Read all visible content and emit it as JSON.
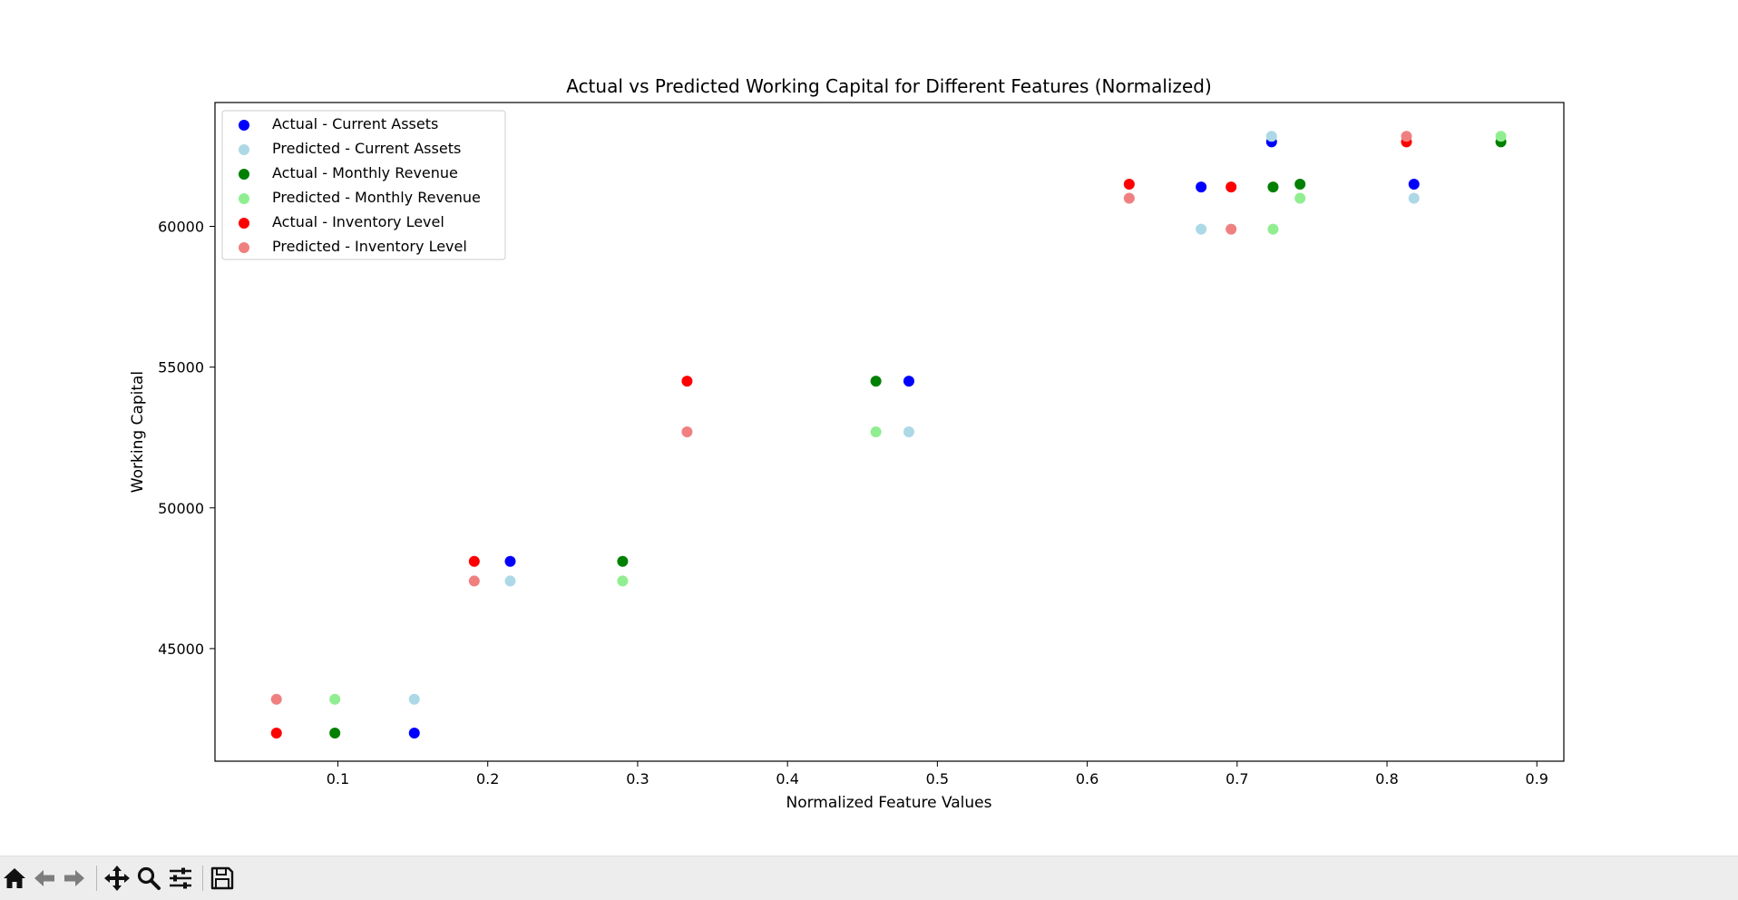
{
  "chart_data": {
    "type": "scatter",
    "title": "Actual vs Predicted Working Capital for Different Features (Normalized)",
    "xlabel": "Normalized Feature Values",
    "ylabel": "Working Capital",
    "xlim": [
      0.018,
      0.918
    ],
    "ylim": [
      41000,
      64400
    ],
    "xticks": [
      0.1,
      0.2,
      0.3,
      0.4,
      0.5,
      0.6,
      0.7,
      0.8,
      0.9
    ],
    "xtick_labels": [
      "0.1",
      "0.2",
      "0.3",
      "0.4",
      "0.5",
      "0.6",
      "0.7",
      "0.8",
      "0.9"
    ],
    "yticks": [
      45000,
      50000,
      55000,
      60000
    ],
    "ytick_labels": [
      "45000",
      "50000",
      "55000",
      "60000"
    ],
    "grid": false,
    "legend_position": "top-left",
    "series": [
      {
        "name": "Actual - Current Assets",
        "color": "#0000ff",
        "points": [
          [
            0.151,
            42000
          ],
          [
            0.215,
            48100
          ],
          [
            0.481,
            54500
          ],
          [
            0.676,
            61400
          ],
          [
            0.723,
            63000
          ],
          [
            0.818,
            61500
          ]
        ]
      },
      {
        "name": "Predicted - Current Assets",
        "color": "#add8e6",
        "points": [
          [
            0.151,
            43200
          ],
          [
            0.215,
            47400
          ],
          [
            0.481,
            52700
          ],
          [
            0.676,
            59900
          ],
          [
            0.723,
            63200
          ],
          [
            0.818,
            61000
          ]
        ]
      },
      {
        "name": "Actual - Monthly Revenue",
        "color": "#008000",
        "points": [
          [
            0.098,
            42000
          ],
          [
            0.29,
            48100
          ],
          [
            0.459,
            54500
          ],
          [
            0.724,
            61400
          ],
          [
            0.742,
            61500
          ],
          [
            0.876,
            63000
          ]
        ]
      },
      {
        "name": "Predicted - Monthly Revenue",
        "color": "#90ee90",
        "points": [
          [
            0.098,
            43200
          ],
          [
            0.29,
            47400
          ],
          [
            0.459,
            52700
          ],
          [
            0.724,
            59900
          ],
          [
            0.742,
            61000
          ],
          [
            0.876,
            63200
          ]
        ]
      },
      {
        "name": "Actual - Inventory Level",
        "color": "#ff0000",
        "points": [
          [
            0.059,
            42000
          ],
          [
            0.191,
            48100
          ],
          [
            0.333,
            54500
          ],
          [
            0.628,
            61500
          ],
          [
            0.696,
            61400
          ],
          [
            0.813,
            63000
          ]
        ]
      },
      {
        "name": "Predicted - Inventory Level",
        "color": "#f08080",
        "points": [
          [
            0.059,
            43200
          ],
          [
            0.191,
            47400
          ],
          [
            0.333,
            52700
          ],
          [
            0.628,
            61000
          ],
          [
            0.696,
            59900
          ],
          [
            0.813,
            63200
          ]
        ]
      }
    ]
  },
  "toolbar": {
    "buttons": [
      {
        "name": "home-button",
        "icon": "home-icon"
      },
      {
        "name": "back-button",
        "icon": "arrow-left-icon"
      },
      {
        "name": "forward-button",
        "icon": "arrow-right-icon"
      },
      {
        "name": "pan-button",
        "icon": "move-icon"
      },
      {
        "name": "zoom-button",
        "icon": "magnifier-icon"
      },
      {
        "name": "configure-subplots-button",
        "icon": "sliders-icon"
      },
      {
        "name": "save-button",
        "icon": "floppy-disk-icon"
      }
    ]
  }
}
